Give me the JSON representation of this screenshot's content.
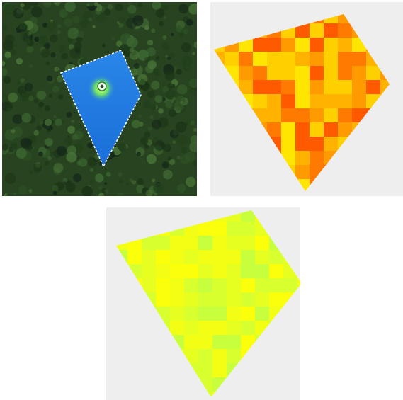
{
  "panels": [
    {
      "name": "satellite-view",
      "field_boundary_style": "dashed-white",
      "field_fill_color": "#1f7be0",
      "background_color": "#27431f",
      "marker_icon": "plant-icon"
    },
    {
      "name": "index-map-warm",
      "background_color": "#eeeeee",
      "palette": [
        "#ff5a00",
        "#ff7a00",
        "#ff9a00",
        "#ffb300",
        "#ffd000",
        "#ffe600"
      ]
    },
    {
      "name": "index-map-lime",
      "background_color": "#eeeeee",
      "palette": [
        "#c8ff3c",
        "#d8ff2e",
        "#e6ff20",
        "#f2ff14",
        "#fbff0a"
      ]
    }
  ]
}
